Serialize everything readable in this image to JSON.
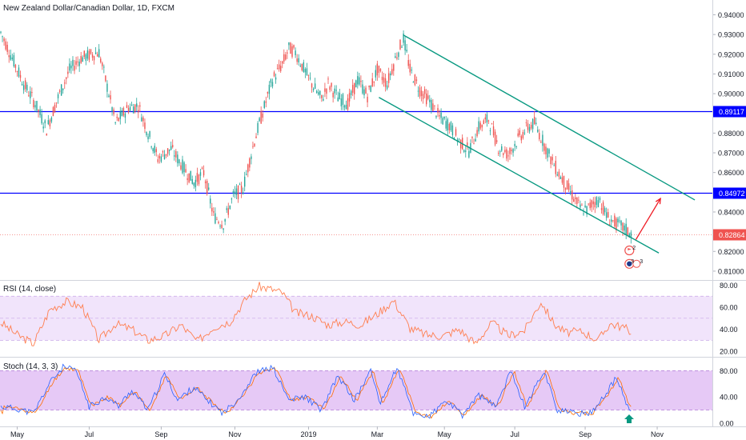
{
  "chart_data": [
    {
      "type": "candlestick",
      "title": "New Zealand Dollar/Canadian Dollar, 1D, FXCM",
      "y_ticks": [
        0.94,
        0.93,
        0.92,
        0.91,
        0.9,
        0.89,
        0.88,
        0.87,
        0.86,
        0.85,
        0.84,
        0.83,
        0.82,
        0.81
      ],
      "y_tick_labels": [
        "0.94000",
        "0.93000",
        "0.92000",
        "0.91000",
        "0.90000",
        "0.89000",
        "0.88000",
        "0.87000",
        "0.86000",
        "0.85000",
        "0.84000",
        "0.83000",
        "0.82000",
        "0.81000"
      ],
      "ylim": [
        0.8055,
        0.9475
      ],
      "x_ticks": [
        "May",
        "Jul",
        "Sep",
        "Nov",
        "2019",
        "Mar",
        "May",
        "Jul",
        "Sep",
        "Nov"
      ],
      "path": [
        [
          0,
          0.931
        ],
        [
          7,
          0.918
        ],
        [
          14,
          0.905
        ],
        [
          21,
          0.895
        ],
        [
          28,
          0.882
        ],
        [
          35,
          0.898
        ],
        [
          42,
          0.912
        ],
        [
          49,
          0.918
        ],
        [
          56,
          0.92
        ],
        [
          60,
          0.921
        ],
        [
          66,
          0.9
        ],
        [
          70,
          0.885
        ],
        [
          78,
          0.893
        ],
        [
          84,
          0.894
        ],
        [
          90,
          0.88
        ],
        [
          96,
          0.867
        ],
        [
          104,
          0.872
        ],
        [
          112,
          0.862
        ],
        [
          118,
          0.855
        ],
        [
          124,
          0.86
        ],
        [
          130,
          0.838
        ],
        [
          136,
          0.834
        ],
        [
          142,
          0.848
        ],
        [
          148,
          0.852
        ],
        [
          154,
          0.873
        ],
        [
          158,
          0.885
        ],
        [
          162,
          0.896
        ],
        [
          166,
          0.907
        ],
        [
          172,
          0.915
        ],
        [
          176,
          0.923
        ],
        [
          180,
          0.921
        ],
        [
          186,
          0.911
        ],
        [
          190,
          0.905
        ],
        [
          196,
          0.897
        ],
        [
          200,
          0.905
        ],
        [
          206,
          0.898
        ],
        [
          212,
          0.895
        ],
        [
          218,
          0.907
        ],
        [
          224,
          0.899
        ],
        [
          230,
          0.912
        ],
        [
          236,
          0.905
        ],
        [
          242,
          0.92
        ],
        [
          246,
          0.928
        ],
        [
          250,
          0.912
        ],
        [
          256,
          0.902
        ],
        [
          262,
          0.896
        ],
        [
          268,
          0.888
        ],
        [
          274,
          0.884
        ],
        [
          280,
          0.876
        ],
        [
          286,
          0.871
        ],
        [
          292,
          0.883
        ],
        [
          298,
          0.887
        ],
        [
          304,
          0.873
        ],
        [
          310,
          0.869
        ],
        [
          316,
          0.877
        ],
        [
          322,
          0.883
        ],
        [
          326,
          0.885
        ],
        [
          330,
          0.878
        ],
        [
          336,
          0.867
        ],
        [
          342,
          0.858
        ],
        [
          348,
          0.85
        ],
        [
          354,
          0.842
        ],
        [
          358,
          0.841
        ],
        [
          362,
          0.845
        ],
        [
          366,
          0.846
        ],
        [
          370,
          0.838
        ],
        [
          376,
          0.834
        ],
        [
          382,
          0.831
        ],
        [
          385,
          0.8286
        ]
      ],
      "horizontal_lines": [
        {
          "price": 0.89117,
          "label": "0.89117",
          "color": "#0000ff"
        },
        {
          "price": 0.84972,
          "label": "0.84972",
          "color": "#0000ff"
        }
      ],
      "current_price": {
        "price": 0.82864,
        "label": "0.82864",
        "color": "#ef5350"
      },
      "channel_color": "#089981",
      "up_color": "#26a69a",
      "down_color": "#ef5350",
      "badges": [
        {
          "price": 0.8205,
          "text": "2"
        },
        {
          "price": 0.8137,
          "text": "3"
        }
      ],
      "badge_counts": [
        "2",
        "3",
        "3"
      ]
    },
    {
      "type": "line",
      "title": "RSI (14, close)",
      "y_ticks": [
        20,
        40,
        60,
        80
      ],
      "y_tick_labels": [
        "20.00",
        "40.00",
        "60.00",
        "80.00"
      ],
      "ylim": [
        15,
        84
      ],
      "band": [
        30,
        70
      ],
      "color": "#ff7f50",
      "points": [
        [
          0,
          46
        ],
        [
          10,
          35
        ],
        [
          20,
          27
        ],
        [
          30,
          58
        ],
        [
          40,
          65
        ],
        [
          50,
          60
        ],
        [
          60,
          30
        ],
        [
          70,
          45
        ],
        [
          80,
          40
        ],
        [
          90,
          30
        ],
        [
          100,
          34
        ],
        [
          110,
          44
        ],
        [
          120,
          29
        ],
        [
          130,
          42
        ],
        [
          140,
          47
        ],
        [
          150,
          68
        ],
        [
          158,
          79
        ],
        [
          166,
          76
        ],
        [
          172,
          73
        ],
        [
          180,
          55
        ],
        [
          190,
          52
        ],
        [
          200,
          44
        ],
        [
          210,
          47
        ],
        [
          220,
          44
        ],
        [
          230,
          54
        ],
        [
          240,
          66
        ],
        [
          250,
          41
        ],
        [
          260,
          35
        ],
        [
          270,
          34
        ],
        [
          280,
          40
        ],
        [
          290,
          27
        ],
        [
          300,
          46
        ],
        [
          310,
          34
        ],
        [
          320,
          39
        ],
        [
          330,
          65
        ],
        [
          338,
          45
        ],
        [
          345,
          37
        ],
        [
          355,
          38
        ],
        [
          365,
          30
        ],
        [
          372,
          45
        ],
        [
          380,
          42
        ],
        [
          385,
          38
        ]
      ]
    },
    {
      "type": "line",
      "title": "Stoch (14, 3, 3)",
      "y_ticks": [
        0,
        40,
        80
      ],
      "y_tick_labels": [
        "0.00",
        "40.00",
        "80.00"
      ],
      "ylim": [
        -5,
        100
      ],
      "band": [
        20,
        80
      ],
      "colors": [
        "#2962ff",
        "#ff6d00"
      ],
      "points": [
        [
          0,
          25
        ],
        [
          10,
          22
        ],
        [
          20,
          15
        ],
        [
          30,
          62
        ],
        [
          38,
          85
        ],
        [
          46,
          80
        ],
        [
          54,
          25
        ],
        [
          64,
          40
        ],
        [
          72,
          26
        ],
        [
          80,
          50
        ],
        [
          90,
          20
        ],
        [
          100,
          75
        ],
        [
          108,
          35
        ],
        [
          118,
          55
        ],
        [
          126,
          35
        ],
        [
          136,
          15
        ],
        [
          146,
          40
        ],
        [
          156,
          77
        ],
        [
          166,
          85
        ],
        [
          176,
          35
        ],
        [
          186,
          40
        ],
        [
          196,
          20
        ],
        [
          206,
          72
        ],
        [
          216,
          35
        ],
        [
          226,
          80
        ],
        [
          232,
          30
        ],
        [
          242,
          85
        ],
        [
          252,
          15
        ],
        [
          262,
          10
        ],
        [
          272,
          34
        ],
        [
          282,
          12
        ],
        [
          292,
          43
        ],
        [
          302,
          25
        ],
        [
          312,
          80
        ],
        [
          320,
          25
        ],
        [
          332,
          80
        ],
        [
          340,
          20
        ],
        [
          350,
          15
        ],
        [
          360,
          15
        ],
        [
          370,
          45
        ],
        [
          376,
          70
        ],
        [
          382,
          30
        ],
        [
          385,
          17
        ]
      ]
    }
  ],
  "arrow_icon": "arrow-up-icon"
}
